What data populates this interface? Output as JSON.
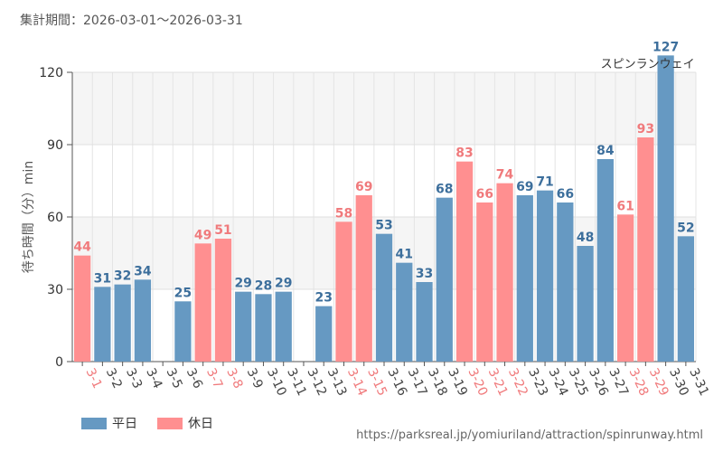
{
  "period_label": "集計期間：2026-03-01～2026-03-31",
  "url": "https://parksreal.jp/yomiuriland/attraction/spinrunway.html",
  "legend": {
    "weekday": "平日",
    "holiday": "休日"
  },
  "colors": {
    "weekday": "#6699c2",
    "holiday": "#ff8f90",
    "weekday_text": "#3d6f9c",
    "holiday_text": "#f07a7c"
  },
  "chart_data": {
    "type": "bar",
    "ylabel": "待ち時間（分）min",
    "ylim": [
      0,
      120
    ],
    "yticks": [
      0,
      30,
      60,
      90,
      120
    ],
    "grid": true,
    "annotation": "スピンランウェイ",
    "categories": [
      "3-1",
      "3-2",
      "3-3",
      "3-4",
      "3-5",
      "3-6",
      "3-7",
      "3-8",
      "3-9",
      "3-10",
      "3-11",
      "3-12",
      "3-13",
      "3-14",
      "3-15",
      "3-16",
      "3-17",
      "3-18",
      "3-19",
      "3-20",
      "3-21",
      "3-22",
      "3-23",
      "3-24",
      "3-25",
      "3-26",
      "3-27",
      "3-28",
      "3-29",
      "3-30",
      "3-31"
    ],
    "values": [
      44,
      31,
      32,
      34,
      null,
      25,
      49,
      51,
      29,
      28,
      29,
      null,
      23,
      58,
      69,
      53,
      41,
      33,
      68,
      83,
      66,
      74,
      69,
      71,
      66,
      48,
      84,
      61,
      93,
      127,
      52
    ],
    "day_type": [
      "holiday",
      "weekday",
      "weekday",
      "weekday",
      "weekday",
      "weekday",
      "holiday",
      "holiday",
      "weekday",
      "weekday",
      "weekday",
      "weekday",
      "weekday",
      "holiday",
      "holiday",
      "weekday",
      "weekday",
      "weekday",
      "weekday",
      "holiday",
      "holiday",
      "holiday",
      "weekday",
      "weekday",
      "weekday",
      "weekday",
      "weekday",
      "holiday",
      "holiday",
      "weekday",
      "weekday"
    ]
  }
}
